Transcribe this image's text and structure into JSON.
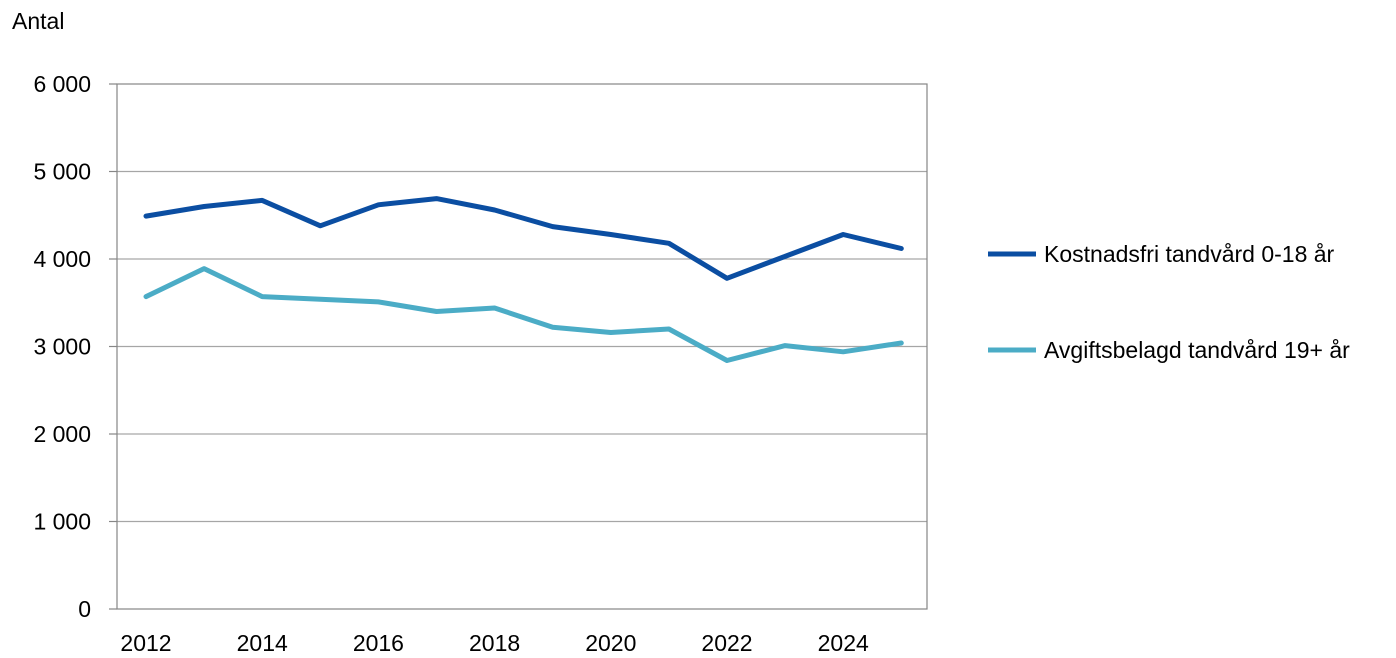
{
  "chart_data": {
    "type": "line",
    "title": "",
    "xlabel": "",
    "ylabel": "Antal",
    "ylim": [
      0,
      6000
    ],
    "yticks": [
      0,
      1000,
      2000,
      3000,
      4000,
      5000,
      6000
    ],
    "ytick_labels": [
      "0",
      "1 000",
      "2 000",
      "3 000",
      "4 000",
      "5 000",
      "6 000"
    ],
    "x": [
      2012,
      2013,
      2014,
      2015,
      2016,
      2017,
      2018,
      2019,
      2020,
      2021,
      2022,
      2023,
      2024,
      2025
    ],
    "xticks": [
      2012,
      2014,
      2016,
      2018,
      2020,
      2022,
      2024
    ],
    "xtick_labels": [
      "2012",
      "2014",
      "2016",
      "2018",
      "2020",
      "2022",
      "2024"
    ],
    "grid": "horizontal",
    "legend_position": "right",
    "series": [
      {
        "name": "Kostnadsfri tandvård 0-18 år",
        "color": "#0B4EA2",
        "values": [
          4490,
          4600,
          4670,
          4380,
          4620,
          4690,
          4560,
          4370,
          4280,
          4180,
          3780,
          4030,
          4280,
          4120
        ]
      },
      {
        "name": "Avgiftsbelagd tandvård 19+ år",
        "color": "#4BACC6",
        "values": [
          3570,
          3890,
          3570,
          3540,
          3510,
          3400,
          3440,
          3220,
          3160,
          3200,
          2840,
          3010,
          2940,
          3040
        ]
      }
    ]
  }
}
